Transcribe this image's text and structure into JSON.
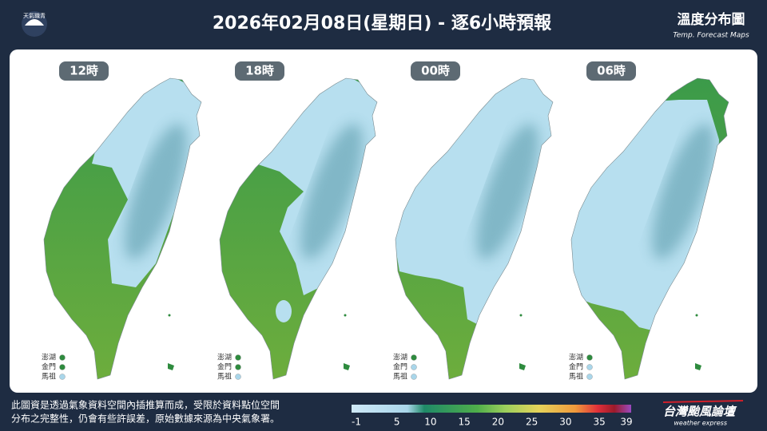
{
  "header": {
    "logo": "天氣職青",
    "title": "2026年02月08日(星期日) - 逐6小時預報",
    "subtitle": "溫度分布圖",
    "subtitle_en": "Temp. Forecast Maps"
  },
  "maps": [
    {
      "time": "12時",
      "islands": [
        "澎湖",
        "金門",
        "馬祖"
      ]
    },
    {
      "time": "18時",
      "islands": [
        "澎湖",
        "金門",
        "馬祖"
      ]
    },
    {
      "time": "00時",
      "islands": [
        "澎湖",
        "金門",
        "馬祖"
      ]
    },
    {
      "time": "06時",
      "islands": [
        "澎湖",
        "金門",
        "馬祖"
      ]
    }
  ],
  "footer": {
    "note": [
      "此圖資是透過氣象資料空間內插推算而成，受限於資料點位空間",
      "分布之完整性，仍會有些許誤差，原始數據來源為中央氣象署。"
    ],
    "colorbar": {
      "ticks": [
        -1,
        5,
        10,
        15,
        20,
        25,
        30,
        35,
        39
      ]
    },
    "brand": "台灣颱風論壇",
    "brand_en": "weather express"
  }
}
